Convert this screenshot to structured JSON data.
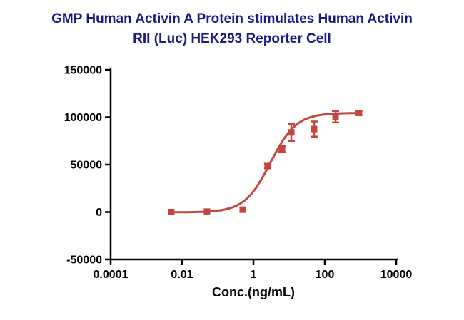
{
  "title": {
    "line1": "GMP Human Activin A Protein stimulates Human Activin",
    "line2": "RII (Luc) HEK293 Reporter Cell",
    "color": "#191984"
  },
  "chart_data": {
    "type": "scatter",
    "title": "GMP Human Activin A Protein stimulates Human Activin RII (Luc) HEK293 Reporter Cell",
    "xlabel": "Conc.(ng/mL)",
    "ylabel": "",
    "x_scale": "log",
    "xlim": [
      0.0001,
      10000
    ],
    "ylim": [
      -50000,
      150000
    ],
    "x_tick_values": [
      0.0001,
      0.01,
      1,
      100,
      10000
    ],
    "x_tick_labels": [
      "0.0001",
      "0.01",
      "1",
      "100",
      "10000"
    ],
    "y_tick_values": [
      -50000,
      0,
      50000,
      100000,
      150000
    ],
    "y_tick_labels": [
      "-50000",
      "0",
      "50000",
      "100000",
      "150000"
    ],
    "grid": false,
    "legend": "none",
    "series": [
      {
        "name": "GMP Human Activin A",
        "marker": "square",
        "color": "#c2463f",
        "x": [
          0.005,
          0.05,
          0.5,
          2.5,
          6.3,
          11.5,
          50,
          200,
          900
        ],
        "y": [
          0,
          500,
          2500,
          48500,
          66500,
          84000,
          87500,
          100500,
          104500
        ],
        "y_error": [
          0,
          0,
          0,
          2500,
          3000,
          9000,
          8000,
          6000,
          2000
        ]
      }
    ],
    "fit": {
      "type": "4PL sigmoidal dose-response",
      "bottom": -300,
      "top": 104500,
      "ec50": 3.0,
      "hill": 1.2,
      "x_range": [
        0.005,
        900
      ]
    }
  }
}
